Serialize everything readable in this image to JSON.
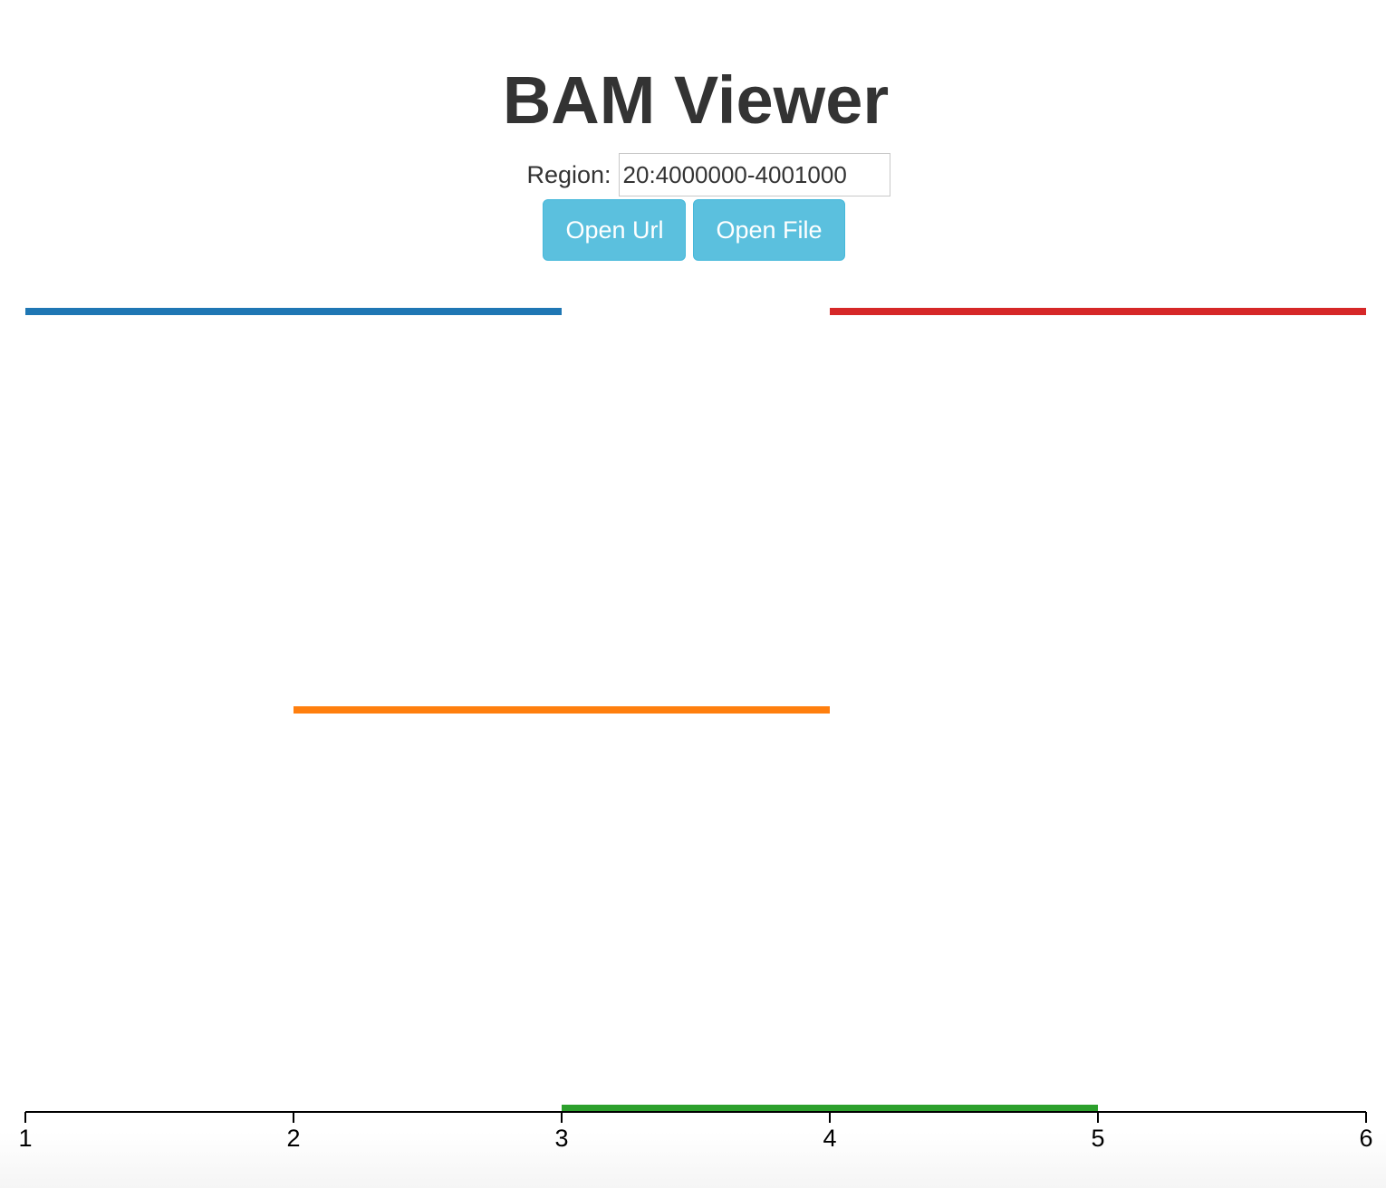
{
  "header": {
    "title": "BAM Viewer"
  },
  "region": {
    "label": "Region:",
    "value": "20:4000000-4001000"
  },
  "buttons": {
    "open_url": "Open Url",
    "open_file": "Open File"
  },
  "chart_data": {
    "type": "bar",
    "title": "",
    "xlabel": "",
    "ylabel": "",
    "xlim": [
      1,
      6
    ],
    "x_ticks": [
      "1",
      "2",
      "3",
      "4",
      "5",
      "6"
    ],
    "grid": false,
    "segments": [
      {
        "start": 1,
        "end": 3,
        "row": 2,
        "color": "#1f77b4"
      },
      {
        "start": 4,
        "end": 6,
        "row": 2,
        "color": "#d62728"
      },
      {
        "start": 2,
        "end": 4,
        "row": 1,
        "color": "#ff7f0e"
      },
      {
        "start": 3,
        "end": 5,
        "row": 0,
        "color": "#2ca02c"
      }
    ]
  }
}
